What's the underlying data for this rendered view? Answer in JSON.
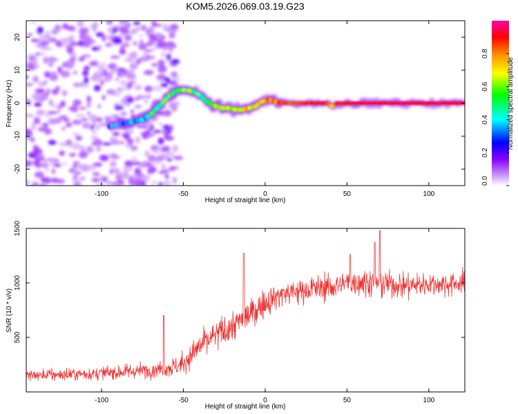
{
  "title": "KOM5.2026.069.03.19.G23",
  "chart_data": [
    {
      "type": "heatmap",
      "name": "spectrogram",
      "xlabel": "Height of straight line (km)",
      "ylabel": "Frequency (Hz)",
      "xlim": [
        -146,
        122
      ],
      "ylim": [
        -25,
        25
      ],
      "xticks": [
        -100,
        -50,
        0,
        50,
        100
      ],
      "yticks": [
        -20,
        -10,
        0,
        10,
        20
      ],
      "xtick_labels": [
        "-100",
        "-50",
        "0",
        "50",
        "100"
      ],
      "ytick_labels": [
        "-20",
        "-10",
        "0",
        "10",
        "20"
      ],
      "colorbar": {
        "label": "Normalized spectral amplitude",
        "range": [
          0,
          1
        ],
        "ticks": [
          0,
          0.2,
          0.4,
          0.6,
          0.8
        ],
        "tick_labels": [
          "0.0",
          "0.2",
          "0.4",
          "0.6",
          "0.8"
        ],
        "colors": [
          "#ffffff",
          "#cc99ff",
          "#8800ff",
          "#0000ff",
          "#00ffff",
          "#00ff00",
          "#ffff00",
          "#ff8800",
          "#ff0000",
          "#ff00aa"
        ]
      },
      "noise_region_x": [
        -146,
        -50
      ],
      "signal_track": {
        "x": [
          -95,
          -85,
          -80,
          -75,
          -70,
          -66,
          -62,
          -58,
          -55,
          -52,
          -48,
          -44,
          -40,
          -37,
          -34,
          -30,
          -26,
          -22,
          -18,
          -14,
          -10,
          -6,
          -2,
          2,
          6,
          10,
          20,
          30,
          38,
          41,
          44,
          50,
          60,
          80,
          100,
          122
        ],
        "y": [
          -7,
          -6,
          -5.5,
          -5,
          -3.5,
          -1.5,
          0.5,
          2.5,
          3.5,
          4,
          4,
          3.5,
          2.5,
          1,
          0,
          -1,
          -1.5,
          -1.5,
          -2,
          -2,
          -1.5,
          -1,
          0.5,
          1,
          0.5,
          0,
          0,
          0,
          0,
          -1,
          0,
          0,
          0,
          0,
          0,
          0
        ],
        "amplitude": [
          0.3,
          0.3,
          0.35,
          0.4,
          0.45,
          0.5,
          0.5,
          0.5,
          0.55,
          0.6,
          0.55,
          0.55,
          0.55,
          0.5,
          0.55,
          0.6,
          0.6,
          0.65,
          0.7,
          0.7,
          0.7,
          0.7,
          0.75,
          0.8,
          0.8,
          0.85,
          0.85,
          0.9,
          0.9,
          0.7,
          0.9,
          0.9,
          0.92,
          0.92,
          0.92,
          0.92
        ]
      }
    },
    {
      "type": "line",
      "name": "snr",
      "xlabel": "Height of straight line (km)",
      "ylabel": "SNR (10 * v/v)",
      "xlim": [
        -146,
        122
      ],
      "ylim": [
        0,
        1500
      ],
      "xticks": [
        -100,
        -50,
        0,
        50,
        100
      ],
      "yticks": [
        500,
        1000,
        1500
      ],
      "xtick_labels": [
        "-100",
        "-50",
        "0",
        "50",
        "100"
      ],
      "ytick_labels": [
        "500",
        "1000",
        "1500"
      ],
      "color": "#ee3333",
      "trend": {
        "x": [
          -146,
          -100,
          -70,
          -55,
          -50,
          -40,
          -30,
          -20,
          -10,
          0,
          10,
          20,
          30,
          40,
          50,
          60,
          70,
          80,
          90,
          100,
          110,
          122
        ],
        "mean": [
          150,
          170,
          200,
          230,
          260,
          420,
          520,
          600,
          700,
          820,
          900,
          920,
          950,
          960,
          1000,
          1010,
          1000,
          980,
          980,
          990,
          990,
          1000
        ],
        "spread": [
          70,
          80,
          90,
          110,
          130,
          160,
          180,
          190,
          170,
          160,
          150,
          150,
          150,
          150,
          160,
          160,
          150,
          150,
          150,
          140,
          140,
          140
        ]
      },
      "spikes": [
        {
          "x": -62,
          "y": 700
        },
        {
          "x": -13,
          "y": 1270
        },
        {
          "x": 52,
          "y": 1260
        },
        {
          "x": 70,
          "y": 1480
        },
        {
          "x": 67,
          "y": 1370
        }
      ]
    }
  ]
}
